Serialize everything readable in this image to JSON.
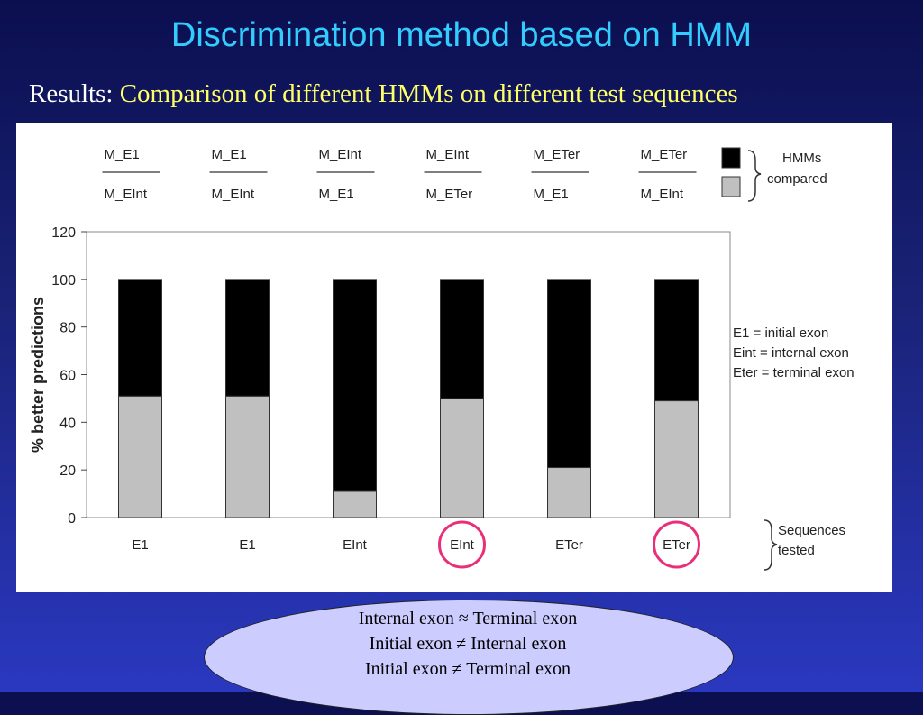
{
  "slide": {
    "title": "Discrimination method based on HMM",
    "subtitle_prefix": "Results:",
    "subtitle_rest": "Comparison of different HMMs on different test sequences"
  },
  "chart_data": {
    "type": "bar",
    "stacked": true,
    "categories": [
      "E1",
      "E1",
      "EInt",
      "EInt",
      "ETer",
      "ETer"
    ],
    "circled_categories": [
      3,
      5
    ],
    "model_pairs": [
      {
        "top": "M_E1",
        "bottom": "M_EInt"
      },
      {
        "top": "M_E1",
        "bottom": "M_EInt"
      },
      {
        "top": "M_EInt",
        "bottom": "M_E1"
      },
      {
        "top": "M_EInt",
        "bottom": "M_ETer"
      },
      {
        "top": "M_ETer",
        "bottom": "M_E1"
      },
      {
        "top": "M_ETer",
        "bottom": "M_EInt"
      }
    ],
    "series": [
      {
        "role": "bottom model",
        "color": "#c0c0c0",
        "values": [
          51,
          51,
          11,
          50,
          21,
          49
        ]
      },
      {
        "role": "top model",
        "color": "#000000",
        "values": [
          49,
          49,
          89,
          50,
          79,
          51
        ]
      }
    ],
    "ylabel": "% better predictions",
    "ylim": [
      0,
      120
    ],
    "yticks": [
      "0",
      "20",
      "40",
      "60",
      "80",
      "100",
      "120"
    ],
    "legend": {
      "hmms_label_1": "HMMs",
      "hmms_label_2": "compared",
      "sequences_label_1": "Sequences",
      "sequences_label_2": "tested",
      "definitions": [
        "E1 = initial exon",
        "Eint = internal exon",
        "Eter = terminal exon"
      ]
    }
  },
  "summary": {
    "lines": [
      "Internal exon  ≈ Terminal exon",
      "Initial exon ≠ Internal exon",
      "Initial exon ≠ Terminal exon"
    ]
  }
}
